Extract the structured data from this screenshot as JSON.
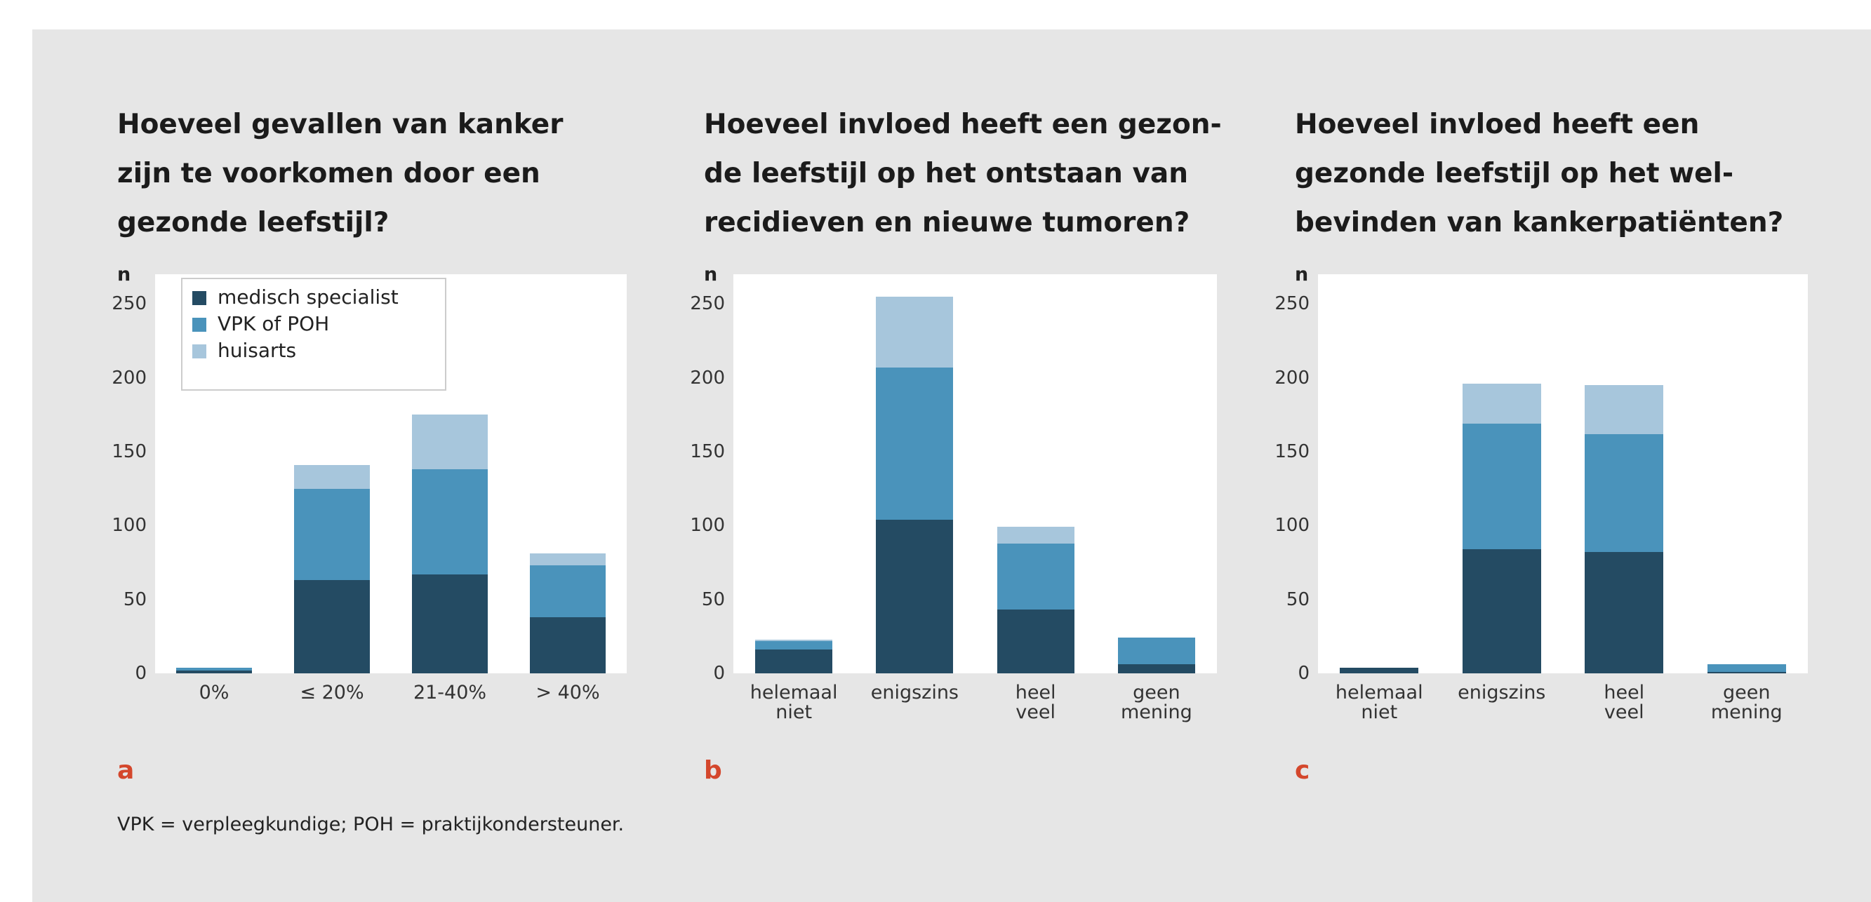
{
  "footnote": "VPK = verpleegkundige; POH = praktijkondersteuner.",
  "chart_data": [
    {
      "type": "bar",
      "stacked": true,
      "label": "a",
      "title": "Hoeveel gevallen van kanker\nzijn te voorkomen door een\ngezonde leefstijl?",
      "y_label": "n",
      "legend": "upper left",
      "grid": false,
      "categories": [
        "0%",
        "≤ 20%",
        "21-40%",
        "> 40%"
      ],
      "ylim": [
        0,
        270
      ],
      "yticks": [
        0,
        50,
        100,
        150,
        200,
        250
      ],
      "series": [
        {
          "name": "medisch specialist",
          "color": "#244b63",
          "values": [
            2,
            63,
            67,
            38
          ]
        },
        {
          "name": "VPK of POH",
          "color": "#4a93bb",
          "values": [
            2,
            62,
            71,
            35
          ]
        },
        {
          "name": "huisarts",
          "color": "#a7c6dc",
          "values": [
            0,
            16,
            37,
            8
          ]
        }
      ]
    },
    {
      "type": "bar",
      "stacked": true,
      "label": "b",
      "title": "Hoeveel invloed heeft een gezon-\nde leefstijl op het ontstaan van\nrecidieven en nieuwe tumoren?",
      "y_label": "n",
      "grid": false,
      "categories": [
        "helemaal\nniet",
        "enigszins",
        "heel\nveel",
        "geen\nmening"
      ],
      "ylim": [
        0,
        270
      ],
      "yticks": [
        0,
        50,
        100,
        150,
        200,
        250
      ],
      "series": [
        {
          "color": "#244b63",
          "values": [
            16,
            104,
            43,
            6
          ]
        },
        {
          "color": "#4a93bb",
          "values": [
            6,
            103,
            45,
            18
          ]
        },
        {
          "color": "#a7c6dc",
          "values": [
            1,
            48,
            11,
            0
          ]
        }
      ]
    },
    {
      "type": "bar",
      "stacked": true,
      "label": "c",
      "title": "Hoeveel invloed heeft een\ngezonde leefstijl op het wel-\nbevinden van kankerpatiënten?",
      "y_label": "n",
      "grid": false,
      "categories": [
        "helemaal\nniet",
        "enigszins",
        "heel\nveel",
        "geen\nmening"
      ],
      "ylim": [
        0,
        270
      ],
      "yticks": [
        0,
        50,
        100,
        150,
        200,
        250
      ],
      "series": [
        {
          "color": "#244b63",
          "values": [
            4,
            84,
            82,
            1
          ]
        },
        {
          "color": "#4a93bb",
          "values": [
            0,
            85,
            80,
            5
          ]
        },
        {
          "color": "#a7c6dc",
          "values": [
            0,
            27,
            33,
            0
          ]
        }
      ]
    }
  ]
}
